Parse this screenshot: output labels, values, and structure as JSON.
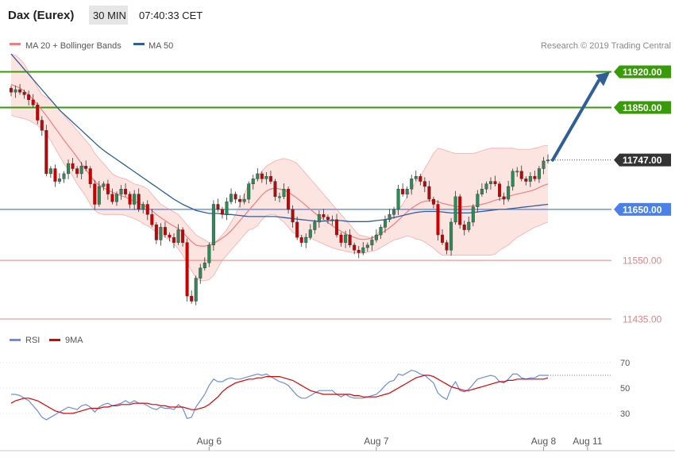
{
  "header": {
    "title": "Dax (Eurex)",
    "timeframe": "30 MIN",
    "time": "07:40:33 CET"
  },
  "legend": {
    "bollinger_label": "MA 20 + Bollinger Bands",
    "ma50_label": "MA 50",
    "copyright": "Research © 2019 Trading Central",
    "rsi_label": "RSI",
    "rsi_ma_label": "9MA"
  },
  "colors": {
    "candle_up": "#2e8b57",
    "candle_down": "#cc0000",
    "bollinger": "#f08080",
    "bollinger_fill": "#fce4e1",
    "ma50": "#2f5f99",
    "green_level": "#3a9b0a",
    "red_level": "#e88080",
    "blue_level": "#4a80e8",
    "current": "#333333",
    "arrow": "#2f5f99",
    "rsi": "#6b8de3",
    "rsi_ma": "#e00000"
  },
  "chart_data": [
    {
      "type": "candlestick",
      "name": "price",
      "y_range": [
        11435,
        11955
      ],
      "levels": [
        {
          "value": 11920,
          "label": "11920.00",
          "style": "resistance"
        },
        {
          "value": 11850,
          "label": "11850.00",
          "style": "resistance"
        },
        {
          "value": 11747,
          "label": "11747.00",
          "style": "current"
        },
        {
          "value": 11650,
          "label": "11650.00",
          "style": "support"
        },
        {
          "value": 11550,
          "label": "11550.00",
          "style": "support_minor"
        },
        {
          "value": 11435,
          "label": "11435.00",
          "style": "support_minor"
        }
      ],
      "forecast": {
        "from": 11747,
        "to": 11920
      },
      "x_labels": [
        {
          "index": 45,
          "label": "Aug 6"
        },
        {
          "index": 83,
          "label": "Aug 7"
        },
        {
          "index": 121,
          "label": "Aug 8"
        },
        {
          "index": 131,
          "label": "Aug 11"
        }
      ],
      "close": [
        11880,
        11885,
        11880,
        11875,
        11865,
        11855,
        11825,
        11805,
        11720,
        11730,
        11705,
        11710,
        11720,
        11740,
        11730,
        11720,
        11735,
        11730,
        11700,
        11660,
        11695,
        11700,
        11680,
        11665,
        11680,
        11690,
        11680,
        11660,
        11680,
        11650,
        11660,
        11640,
        11620,
        11590,
        11615,
        11600,
        11595,
        11585,
        11610,
        11585,
        11480,
        11470,
        11515,
        11535,
        11545,
        11580,
        11660,
        11650,
        11640,
        11665,
        11680,
        11670,
        11665,
        11670,
        11700,
        11710,
        11720,
        11710,
        11715,
        11705,
        11675,
        11675,
        11690,
        11650,
        11625,
        11595,
        11585,
        11595,
        11610,
        11625,
        11640,
        11635,
        11630,
        11630,
        11600,
        11585,
        11600,
        11580,
        11570,
        11565,
        11575,
        11580,
        11590,
        11600,
        11615,
        11630,
        11640,
        11650,
        11690,
        11680,
        11690,
        11710,
        11715,
        11705,
        11695,
        11670,
        11660,
        11600,
        11585,
        11570,
        11625,
        11675,
        11620,
        11610,
        11625,
        11655,
        11680,
        11690,
        11700,
        11705,
        11700,
        11675,
        11670,
        11695,
        11725,
        11725,
        11710,
        11705,
        11715,
        11710,
        11730,
        11745,
        11747
      ],
      "ma20_upper": [
        11955,
        11952,
        11945,
        11935,
        11920,
        11905,
        11890,
        11875,
        11870,
        11865,
        11855,
        11845,
        11835,
        11825,
        11815,
        11805,
        11795,
        11785,
        11775,
        11760,
        11750,
        11740,
        11730,
        11720,
        11715,
        11712,
        11710,
        11705,
        11700,
        11698,
        11695,
        11690,
        11680,
        11670,
        11660,
        11655,
        11650,
        11645,
        11640,
        11630,
        11620,
        11610,
        11600,
        11595,
        11590,
        11585,
        11585,
        11590,
        11600,
        11610,
        11625,
        11640,
        11660,
        11680,
        11700,
        11705,
        11715,
        11725,
        11735,
        11740,
        11745,
        11748,
        11750,
        11748,
        11745,
        11740,
        11730,
        11720,
        11710,
        11700,
        11690,
        11680,
        11670,
        11660,
        11650,
        11640,
        11630,
        11620,
        11610,
        11600,
        11598,
        11596,
        11594,
        11600,
        11610,
        11620,
        11630,
        11640,
        11650,
        11660,
        11675,
        11690,
        11705,
        11715,
        11730,
        11745,
        11760,
        11770,
        11768,
        11765,
        11762,
        11760,
        11760,
        11760,
        11760,
        11760,
        11762,
        11765,
        11768,
        11770,
        11770,
        11770,
        11770,
        11770,
        11770,
        11768,
        11768,
        11768,
        11768,
        11770,
        11772,
        11775,
        11775
      ],
      "ma20_mid": [
        11895,
        11892,
        11888,
        11882,
        11875,
        11866,
        11856,
        11845,
        11834,
        11822,
        11810,
        11798,
        11786,
        11775,
        11764,
        11752,
        11740,
        11728,
        11716,
        11705,
        11698,
        11692,
        11688,
        11684,
        11680,
        11677,
        11674,
        11670,
        11666,
        11662,
        11658,
        11654,
        11648,
        11640,
        11634,
        11628,
        11622,
        11617,
        11612,
        11605,
        11596,
        11587,
        11580,
        11578,
        11578,
        11580,
        11583,
        11588,
        11594,
        11600,
        11608,
        11618,
        11628,
        11638,
        11648,
        11658,
        11668,
        11678,
        11686,
        11690,
        11692,
        11690,
        11688,
        11684,
        11678,
        11672,
        11665,
        11658,
        11650,
        11643,
        11636,
        11630,
        11624,
        11618,
        11612,
        11607,
        11602,
        11598,
        11595,
        11592,
        11591,
        11592,
        11594,
        11597,
        11602,
        11608,
        11614,
        11621,
        11629,
        11637,
        11645,
        11652,
        11658,
        11663,
        11666,
        11667,
        11667,
        11665,
        11662,
        11660,
        11658,
        11656,
        11655,
        11655,
        11656,
        11657,
        11658,
        11660,
        11662,
        11665,
        11668,
        11670,
        11672,
        11675,
        11678,
        11680,
        11682,
        11684,
        11686,
        11689,
        11693,
        11697,
        11700
      ],
      "ma20_lower": [
        11835,
        11832,
        11830,
        11828,
        11825,
        11820,
        11815,
        11808,
        11798,
        11785,
        11770,
        11755,
        11740,
        11728,
        11715,
        11700,
        11688,
        11675,
        11660,
        11648,
        11642,
        11640,
        11640,
        11640,
        11640,
        11640,
        11638,
        11635,
        11632,
        11628,
        11622,
        11618,
        11612,
        11605,
        11600,
        11595,
        11590,
        11582,
        11572,
        11560,
        11545,
        11530,
        11515,
        11510,
        11510,
        11512,
        11520,
        11535,
        11550,
        11560,
        11570,
        11580,
        11590,
        11600,
        11610,
        11612,
        11618,
        11630,
        11638,
        11640,
        11640,
        11632,
        11625,
        11615,
        11605,
        11600,
        11598,
        11596,
        11594,
        11590,
        11586,
        11582,
        11578,
        11575,
        11572,
        11570,
        11568,
        11566,
        11565,
        11564,
        11564,
        11566,
        11568,
        11570,
        11575,
        11580,
        11585,
        11590,
        11592,
        11595,
        11598,
        11596,
        11592,
        11590,
        11586,
        11580,
        11574,
        11566,
        11560,
        11560,
        11560,
        11560,
        11560,
        11560,
        11560,
        11560,
        11560,
        11560,
        11560,
        11560,
        11562,
        11570,
        11575,
        11580,
        11588,
        11595,
        11600,
        11605,
        11610,
        11615,
        11618,
        11622,
        11625
      ],
      "ma50": [
        11955,
        11945,
        11935,
        11925,
        11915,
        11905,
        11895,
        11885,
        11875,
        11865,
        11855,
        11845,
        11837,
        11829,
        11821,
        11813,
        11805,
        11797,
        11789,
        11781,
        11773,
        11766,
        11760,
        11754,
        11748,
        11742,
        11736,
        11730,
        11724,
        11718,
        11712,
        11706,
        11700,
        11694,
        11688,
        11682,
        11676,
        11670,
        11665,
        11660,
        11656,
        11652,
        11648,
        11646,
        11644,
        11642,
        11642,
        11642,
        11641,
        11640,
        11640,
        11639,
        11638,
        11637,
        11636,
        11636,
        11636,
        11636,
        11636,
        11636,
        11636,
        11635,
        11634,
        11633,
        11632,
        11631,
        11630,
        11629,
        11628,
        11627,
        11627,
        11627,
        11628,
        11628,
        11628,
        11628,
        11627,
        11626,
        11626,
        11626,
        11626,
        11626,
        11627,
        11628,
        11629,
        11630,
        11632,
        11634,
        11636,
        11638,
        11640,
        11642,
        11644,
        11645,
        11646,
        11646,
        11646,
        11646,
        11645,
        11644,
        11643,
        11643,
        11643,
        11643,
        11643,
        11644,
        11645,
        11646,
        11647,
        11648,
        11649,
        11650,
        11650,
        11651,
        11652,
        11653,
        11654,
        11655,
        11656,
        11657,
        11658,
        11659,
        11660
      ]
    },
    {
      "type": "line",
      "name": "rsi_panel",
      "y_range": [
        15,
        80
      ],
      "y_ticks": [
        30,
        50,
        70
      ],
      "reference_line": 60,
      "series": [
        {
          "name": "RSI",
          "values": [
            45,
            45,
            44,
            42,
            40,
            36,
            32,
            27,
            25,
            27,
            29,
            31,
            33,
            35,
            34,
            33,
            36,
            37,
            35,
            31,
            35,
            37,
            38,
            36,
            37,
            38,
            40,
            38,
            40,
            38,
            38,
            36,
            34,
            33,
            35,
            34,
            34,
            33,
            37,
            34,
            26,
            27,
            35,
            40,
            45,
            52,
            57,
            55,
            55,
            57,
            58,
            57,
            57,
            58,
            59,
            60,
            61,
            60,
            61,
            59,
            57,
            55,
            54,
            52,
            48,
            44,
            42,
            42,
            44,
            46,
            48,
            48,
            48,
            48,
            45,
            43,
            45,
            43,
            42,
            42,
            42,
            43,
            44,
            45,
            48,
            52,
            55,
            56,
            61,
            60,
            62,
            64,
            63,
            61,
            60,
            57,
            54,
            46,
            43,
            41,
            50,
            55,
            48,
            47,
            49,
            53,
            57,
            58,
            59,
            60,
            59,
            55,
            54,
            57,
            61,
            61,
            58,
            57,
            58,
            58,
            60,
            60,
            60
          ]
        },
        {
          "name": "9MA",
          "values": [
            38,
            40,
            41,
            42,
            42,
            41,
            40,
            38,
            36,
            34,
            32,
            31,
            30,
            30,
            30,
            31,
            32,
            33,
            34,
            34,
            34,
            35,
            35,
            36,
            36,
            37,
            37,
            37,
            38,
            38,
            38,
            38,
            37,
            37,
            36,
            36,
            35,
            35,
            35,
            35,
            34,
            33,
            33,
            34,
            35,
            37,
            40,
            43,
            47,
            50,
            52,
            54,
            55,
            56,
            57,
            57,
            58,
            58,
            59,
            59,
            59,
            59,
            58,
            57,
            56,
            54,
            52,
            50,
            48,
            47,
            46,
            45,
            45,
            45,
            45,
            45,
            45,
            45,
            44,
            44,
            43,
            43,
            43,
            43,
            44,
            45,
            46,
            48,
            50,
            52,
            54,
            56,
            58,
            59,
            60,
            60,
            59,
            57,
            55,
            53,
            51,
            50,
            49,
            48,
            48,
            49,
            50,
            51,
            52,
            53,
            54,
            55,
            55,
            56,
            56,
            57,
            57,
            57,
            57,
            57,
            57,
            57,
            58
          ]
        }
      ]
    }
  ]
}
